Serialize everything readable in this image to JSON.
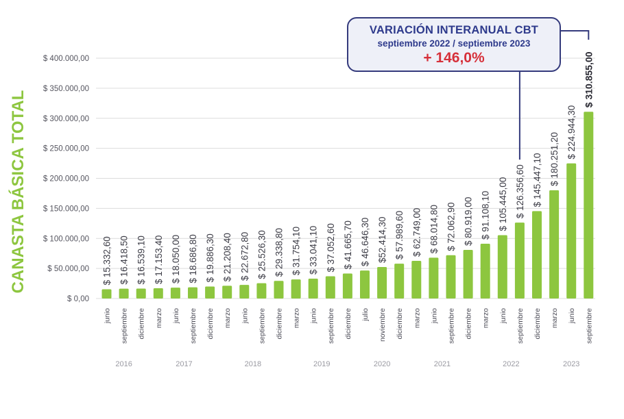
{
  "callout": {
    "title": "VARIACIÓN INTERANUAL CBT",
    "period": "septiembre 2022 / septiembre 2023",
    "change": "+ 146,0%"
  },
  "chart_data": {
    "type": "bar",
    "ylabel": "CANASTA BÁSICA TOTAL",
    "ylim": [
      0,
      400000
    ],
    "yticks": [
      0,
      50000,
      100000,
      150000,
      200000,
      250000,
      300000,
      350000,
      400000
    ],
    "ytick_labels": [
      "$ 0,00",
      "$ 50.000,00",
      "$ 100.000,00",
      "$ 150.000,00",
      "$ 200.000,00",
      "$ 250.000,00",
      "$ 300.000,00",
      "$ 350.000,00",
      "$ 400.000,00"
    ],
    "grid": true,
    "bar_color": "#8dc63f",
    "categories": [
      "junio",
      "septiembre",
      "diciembre",
      "marzo",
      "junio",
      "septiembre",
      "diciembre",
      "marzo",
      "junio",
      "septiembre",
      "diciembre",
      "marzo",
      "junio",
      "septiembre",
      "diciembre",
      "julio",
      "noviembre",
      "diciembre",
      "marzo",
      "junio",
      "septiembre",
      "diciembre",
      "marzo",
      "junio",
      "septiembre",
      "diciembre",
      "marzo",
      "junio",
      "septiembre"
    ],
    "values": [
      15332.6,
      16418.5,
      16539.1,
      17153.4,
      18050.0,
      18686.8,
      19886.3,
      21208.4,
      22672.8,
      25526.3,
      29338.8,
      31754.1,
      33041.1,
      37052.6,
      41665.7,
      46646.3,
      52414.3,
      57989.6,
      62749.0,
      68014.8,
      72062.9,
      80919.0,
      91108.1,
      105445.0,
      126356.6,
      145447.1,
      180251.2,
      224944.3,
      310855.0
    ],
    "value_labels": [
      "$ 15.332,60",
      "$ 16.418,50",
      "$ 16.539,10",
      "$ 17.153,40",
      "$ 18.050,00",
      "$ 18.686,80",
      "$ 19.886,30",
      "$ 21.208,40",
      "$ 22.672,80",
      "$ 25.526,30",
      "$ 29.338,80",
      "$ 31.754,10",
      "$ 33.041,10",
      "$ 37.052,60",
      "$ 41.665,70",
      "$ 46.646,30",
      "$52.414,30",
      "$ 57.989,60",
      "$ 62.749,00",
      "$ 68.014,80",
      "$ 72.062,90",
      "$ 80.919,00",
      "$ 91.108,10",
      "$ 105.445,00",
      "$ 126.356,60",
      "$ 145.447,10",
      "$ 180.251,20",
      "$ 224.944,30",
      "$ 310.855,00"
    ],
    "years": [
      {
        "label": "2016",
        "from": 0,
        "to": 2
      },
      {
        "label": "2017",
        "from": 3,
        "to": 6
      },
      {
        "label": "2018",
        "from": 7,
        "to": 10
      },
      {
        "label": "2019",
        "from": 11,
        "to": 14
      },
      {
        "label": "2020",
        "from": 15,
        "to": 17
      },
      {
        "label": "2021",
        "from": 18,
        "to": 21
      },
      {
        "label": "2022",
        "from": 22,
        "to": 25
      },
      {
        "label": "2023",
        "from": 26,
        "to": 28
      }
    ]
  }
}
